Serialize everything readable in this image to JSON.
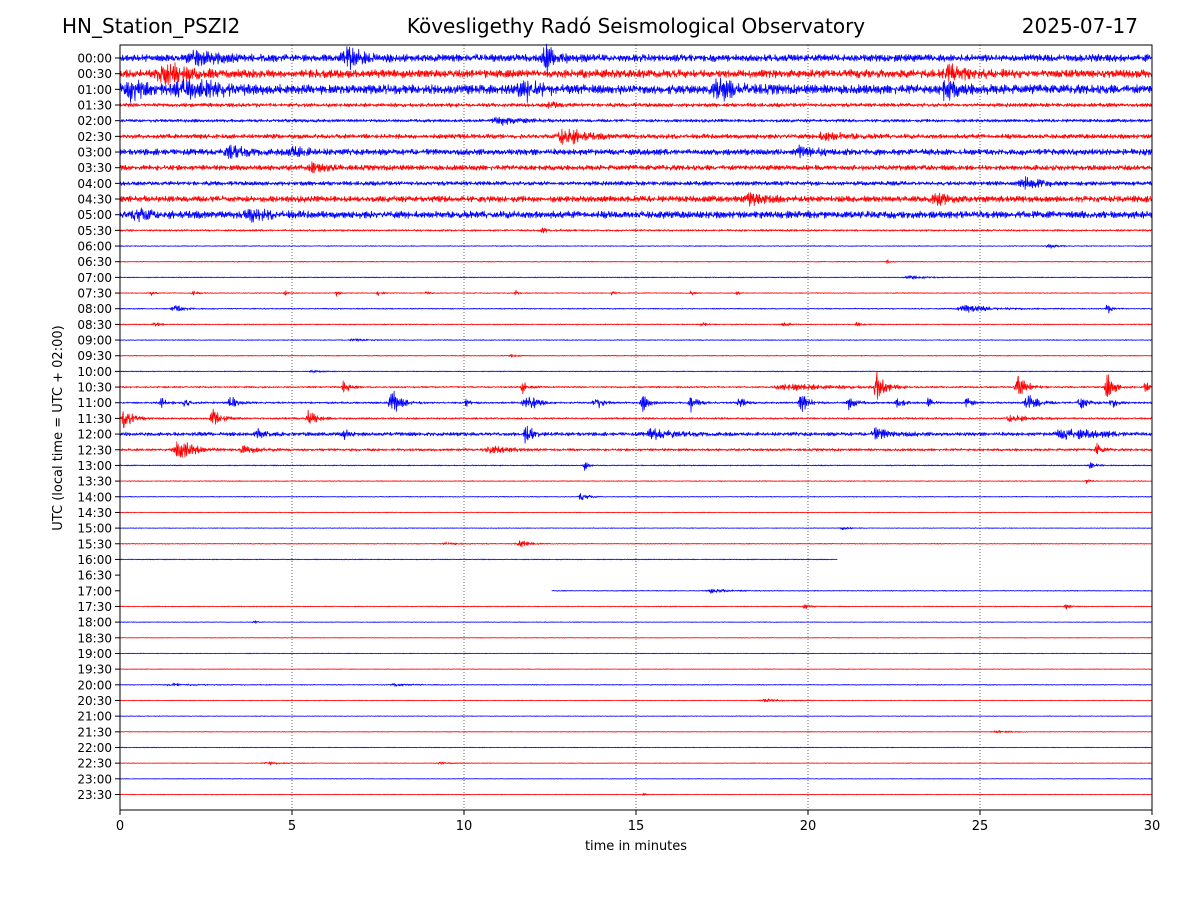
{
  "header": {
    "station": "HN_Station_PSZI2",
    "title": "Kövesligethy Radó Seismological Observatory",
    "date": "2025-07-17"
  },
  "chart_data": {
    "type": "line",
    "title": "Kövesligethy Radó Seismological Observatory",
    "xlabel": "time in minutes",
    "ylabel": "UTC (local time = UTC + 02:00)",
    "xlim": [
      0,
      30
    ],
    "x_ticks": [
      "0",
      "5",
      "10",
      "15",
      "20",
      "25",
      "30"
    ],
    "grid": "vertical dotted at 5-minute ticks",
    "colors": {
      "even_rows": "#0000ff",
      "odd_rows": "#ff0000"
    },
    "rows": [
      {
        "label": "00:00",
        "color": "#0000ff",
        "start": 0,
        "end": 30,
        "noise": 3.5,
        "events": [
          {
            "t": 6.6,
            "amp": 10,
            "w": 0.5
          },
          {
            "t": 12.4,
            "amp": 12,
            "w": 0.4
          },
          {
            "t": 2.2,
            "amp": 6,
            "w": 0.8
          }
        ]
      },
      {
        "label": "00:30",
        "color": "#ff0000",
        "start": 0,
        "end": 30,
        "noise": 4,
        "events": [
          {
            "t": 1.3,
            "amp": 13,
            "w": 0.6
          },
          {
            "t": 24.1,
            "amp": 8,
            "w": 0.5
          }
        ]
      },
      {
        "label": "01:00",
        "color": "#0000ff",
        "start": 0,
        "end": 30,
        "noise": 4.5,
        "events": [
          {
            "t": 0.2,
            "amp": 10,
            "w": 0.6
          },
          {
            "t": 2.0,
            "amp": 9,
            "w": 1.0
          },
          {
            "t": 11.7,
            "amp": 11,
            "w": 0.5
          },
          {
            "t": 17.4,
            "amp": 10,
            "w": 0.5
          },
          {
            "t": 24.0,
            "amp": 9,
            "w": 0.4
          }
        ]
      },
      {
        "label": "01:30",
        "color": "#ff0000",
        "start": 0,
        "end": 30,
        "noise": 1.8,
        "events": [
          {
            "t": 12.5,
            "amp": 3,
            "w": 0.3
          }
        ]
      },
      {
        "label": "02:00",
        "color": "#0000ff",
        "start": 0,
        "end": 30,
        "noise": 1.5,
        "events": [
          {
            "t": 11.0,
            "amp": 4,
            "w": 0.6
          }
        ]
      },
      {
        "label": "02:30",
        "color": "#ff0000",
        "start": 0,
        "end": 30,
        "noise": 2.2,
        "events": [
          {
            "t": 12.9,
            "amp": 12,
            "w": 0.5
          },
          {
            "t": 20.5,
            "amp": 4,
            "w": 0.6
          }
        ]
      },
      {
        "label": "03:00",
        "color": "#0000ff",
        "start": 0,
        "end": 30,
        "noise": 3,
        "events": [
          {
            "t": 3.2,
            "amp": 6,
            "w": 0.4
          },
          {
            "t": 5.0,
            "amp": 5,
            "w": 0.4
          },
          {
            "t": 19.8,
            "amp": 5,
            "w": 0.4
          }
        ]
      },
      {
        "label": "03:30",
        "color": "#ff0000",
        "start": 0,
        "end": 30,
        "noise": 2.5,
        "events": [
          {
            "t": 5.6,
            "amp": 4,
            "w": 0.4
          }
        ]
      },
      {
        "label": "04:00",
        "color": "#0000ff",
        "start": 0,
        "end": 30,
        "noise": 2,
        "events": [
          {
            "t": 26.3,
            "amp": 6,
            "w": 0.5
          }
        ]
      },
      {
        "label": "04:30",
        "color": "#ff0000",
        "start": 0,
        "end": 30,
        "noise": 3,
        "events": [
          {
            "t": 18.3,
            "amp": 5,
            "w": 0.5
          },
          {
            "t": 23.7,
            "amp": 5,
            "w": 0.4
          }
        ]
      },
      {
        "label": "05:00",
        "color": "#0000ff",
        "start": 0,
        "end": 30,
        "noise": 3.5,
        "events": [
          {
            "t": 0.5,
            "amp": 5,
            "w": 0.6
          },
          {
            "t": 3.8,
            "amp": 5,
            "w": 0.5
          }
        ]
      },
      {
        "label": "05:30",
        "color": "#ff0000",
        "start": 0,
        "end": 30,
        "noise": 0.9,
        "events": [
          {
            "t": 12.3,
            "amp": 2,
            "w": 0.3
          }
        ]
      },
      {
        "label": "06:00",
        "color": "#0000ff",
        "start": 0,
        "end": 30,
        "noise": 0.4,
        "events": [
          {
            "t": 27.0,
            "amp": 3,
            "w": 0.2
          }
        ]
      },
      {
        "label": "06:30",
        "color": "#ff0000",
        "start": 0,
        "end": 30,
        "noise": 0.4,
        "events": [
          {
            "t": 22.3,
            "amp": 2,
            "w": 0.1
          }
        ]
      },
      {
        "label": "07:00",
        "color": "#0000ff",
        "start": 0,
        "end": 30,
        "noise": 0.4,
        "events": [
          {
            "t": 23.0,
            "amp": 1.5,
            "w": 0.6
          }
        ]
      },
      {
        "label": "07:30",
        "color": "#ff0000",
        "start": 0,
        "end": 30,
        "noise": 0.4,
        "events": [
          {
            "t": 0.9,
            "amp": 3,
            "w": 0.1
          },
          {
            "t": 2.1,
            "amp": 2.5,
            "w": 0.15
          },
          {
            "t": 4.8,
            "amp": 3,
            "w": 0.1
          },
          {
            "t": 6.3,
            "amp": 3,
            "w": 0.1
          },
          {
            "t": 7.5,
            "amp": 3,
            "w": 0.1
          },
          {
            "t": 8.9,
            "amp": 3,
            "w": 0.1
          },
          {
            "t": 11.5,
            "amp": 2.5,
            "w": 0.1
          },
          {
            "t": 14.3,
            "amp": 2.5,
            "w": 0.1
          },
          {
            "t": 16.6,
            "amp": 3,
            "w": 0.1
          },
          {
            "t": 17.9,
            "amp": 2.5,
            "w": 0.1
          }
        ]
      },
      {
        "label": "08:00",
        "color": "#0000ff",
        "start": 0,
        "end": 30,
        "noise": 0.5,
        "events": [
          {
            "t": 1.6,
            "amp": 4,
            "w": 0.3
          },
          {
            "t": 24.6,
            "amp": 4,
            "w": 0.8
          },
          {
            "t": 28.7,
            "amp": 5,
            "w": 0.15
          }
        ]
      },
      {
        "label": "08:30",
        "color": "#ff0000",
        "start": 0,
        "end": 30,
        "noise": 0.5,
        "events": [
          {
            "t": 1.0,
            "amp": 3,
            "w": 0.15
          },
          {
            "t": 16.9,
            "amp": 2.5,
            "w": 0.15
          },
          {
            "t": 19.3,
            "amp": 2.5,
            "w": 0.15
          },
          {
            "t": 21.4,
            "amp": 2.5,
            "w": 0.15
          }
        ]
      },
      {
        "label": "09:00",
        "color": "#0000ff",
        "start": 0,
        "end": 30,
        "noise": 0.4,
        "events": [
          {
            "t": 6.8,
            "amp": 1.5,
            "w": 0.4
          }
        ]
      },
      {
        "label": "09:30",
        "color": "#ff0000",
        "start": 0,
        "end": 30,
        "noise": 0.4,
        "events": [
          {
            "t": 11.4,
            "amp": 1.5,
            "w": 0.2
          }
        ]
      },
      {
        "label": "10:00",
        "color": "#0000ff",
        "start": 0,
        "end": 30,
        "noise": 0.4,
        "events": [
          {
            "t": 5.6,
            "amp": 1.5,
            "w": 0.3
          }
        ]
      },
      {
        "label": "10:30",
        "color": "#ff0000",
        "start": 0,
        "end": 30,
        "noise": 0.8,
        "events": [
          {
            "t": 6.5,
            "amp": 9,
            "w": 0.15
          },
          {
            "t": 11.7,
            "amp": 6,
            "w": 0.15
          },
          {
            "t": 19.5,
            "amp": 3,
            "w": 1.5
          },
          {
            "t": 22.0,
            "amp": 15,
            "w": 0.25
          },
          {
            "t": 26.1,
            "amp": 14,
            "w": 0.25
          },
          {
            "t": 28.7,
            "amp": 15,
            "w": 0.2
          },
          {
            "t": 29.8,
            "amp": 7,
            "w": 0.15
          }
        ]
      },
      {
        "label": "11:00",
        "color": "#0000ff",
        "start": 0,
        "end": 30,
        "noise": 0.9,
        "events": [
          {
            "t": 1.2,
            "amp": 6,
            "w": 0.15
          },
          {
            "t": 1.9,
            "amp": 6,
            "w": 0.15
          },
          {
            "t": 3.2,
            "amp": 7,
            "w": 0.2
          },
          {
            "t": 7.9,
            "amp": 15,
            "w": 0.25
          },
          {
            "t": 10.0,
            "amp": 5,
            "w": 0.15
          },
          {
            "t": 11.8,
            "amp": 14,
            "w": 0.25
          },
          {
            "t": 13.8,
            "amp": 8,
            "w": 0.2
          },
          {
            "t": 15.2,
            "amp": 8,
            "w": 0.2
          },
          {
            "t": 16.6,
            "amp": 9,
            "w": 0.2
          },
          {
            "t": 18.0,
            "amp": 6,
            "w": 0.15
          },
          {
            "t": 19.8,
            "amp": 12,
            "w": 0.2
          },
          {
            "t": 21.2,
            "amp": 8,
            "w": 0.2
          },
          {
            "t": 22.6,
            "amp": 6,
            "w": 0.2
          },
          {
            "t": 23.5,
            "amp": 5,
            "w": 0.15
          },
          {
            "t": 24.6,
            "amp": 6,
            "w": 0.15
          },
          {
            "t": 26.4,
            "amp": 10,
            "w": 0.3
          },
          {
            "t": 27.9,
            "amp": 10,
            "w": 0.2
          },
          {
            "t": 28.8,
            "amp": 7,
            "w": 0.15
          }
        ]
      },
      {
        "label": "11:30",
        "color": "#ff0000",
        "start": 0,
        "end": 30,
        "noise": 0.9,
        "events": [
          {
            "t": 0.1,
            "amp": 12,
            "w": 0.25
          },
          {
            "t": 2.7,
            "amp": 10,
            "w": 0.25
          },
          {
            "t": 5.5,
            "amp": 10,
            "w": 0.2
          },
          {
            "t": 25.9,
            "amp": 5,
            "w": 0.4
          }
        ]
      },
      {
        "label": "12:00",
        "color": "#0000ff",
        "start": 0,
        "end": 30,
        "noise": 1.8,
        "events": [
          {
            "t": 4.0,
            "amp": 4,
            "w": 0.2
          },
          {
            "t": 6.5,
            "amp": 5,
            "w": 0.15
          },
          {
            "t": 11.8,
            "amp": 10,
            "w": 0.2
          },
          {
            "t": 15.5,
            "amp": 5,
            "w": 0.6
          },
          {
            "t": 22.0,
            "amp": 5,
            "w": 0.5
          },
          {
            "t": 27.5,
            "amp": 5,
            "w": 1.0
          }
        ]
      },
      {
        "label": "12:30",
        "color": "#ff0000",
        "start": 0,
        "end": 30,
        "noise": 1.2,
        "events": [
          {
            "t": 1.7,
            "amp": 12,
            "w": 0.4
          },
          {
            "t": 3.6,
            "amp": 4,
            "w": 0.4
          },
          {
            "t": 10.8,
            "amp": 4,
            "w": 0.5
          },
          {
            "t": 28.4,
            "amp": 6,
            "w": 0.15
          }
        ]
      },
      {
        "label": "13:00",
        "color": "#0000ff",
        "start": 0,
        "end": 30,
        "noise": 0.5,
        "events": [
          {
            "t": 13.5,
            "amp": 6,
            "w": 0.1
          },
          {
            "t": 28.2,
            "amp": 3,
            "w": 0.2
          }
        ]
      },
      {
        "label": "13:30",
        "color": "#ff0000",
        "start": 0,
        "end": 30,
        "noise": 0.4,
        "events": [
          {
            "t": 28.1,
            "amp": 2.5,
            "w": 0.1
          }
        ]
      },
      {
        "label": "14:00",
        "color": "#0000ff",
        "start": 0,
        "end": 30,
        "noise": 0.4,
        "events": [
          {
            "t": 13.4,
            "amp": 5,
            "w": 0.2
          }
        ]
      },
      {
        "label": "14:30",
        "color": "#ff0000",
        "start": 0,
        "end": 30,
        "noise": 0.3,
        "events": []
      },
      {
        "label": "15:00",
        "color": "#0000ff",
        "start": 0,
        "end": 30,
        "noise": 0.3,
        "events": [
          {
            "t": 21.0,
            "amp": 2,
            "w": 0.2
          }
        ]
      },
      {
        "label": "15:30",
        "color": "#ff0000",
        "start": 0,
        "end": 30,
        "noise": 0.4,
        "events": [
          {
            "t": 11.6,
            "amp": 4,
            "w": 0.3
          },
          {
            "t": 9.5,
            "amp": 1.5,
            "w": 0.4
          }
        ]
      },
      {
        "label": "16:00",
        "color": "#0000ff",
        "start": 0,
        "end": 20.85,
        "noise": 0.4,
        "events": []
      },
      {
        "label": "16:30",
        "color": "#ff0000",
        "start": 0,
        "end": 0,
        "noise": 0,
        "events": []
      },
      {
        "label": "17:00",
        "color": "#0000ff",
        "start": 12.55,
        "end": 30,
        "noise": 0.4,
        "events": [
          {
            "t": 17.2,
            "amp": 2,
            "w": 0.5
          }
        ]
      },
      {
        "label": "17:30",
        "color": "#ff0000",
        "start": 0,
        "end": 30,
        "noise": 0.4,
        "events": [
          {
            "t": 19.9,
            "amp": 2.5,
            "w": 0.15
          },
          {
            "t": 27.5,
            "amp": 2.5,
            "w": 0.15
          }
        ]
      },
      {
        "label": "18:00",
        "color": "#0000ff",
        "start": 0,
        "end": 30,
        "noise": 0.3,
        "events": [
          {
            "t": 3.9,
            "amp": 1.5,
            "w": 0.15
          }
        ]
      },
      {
        "label": "18:30",
        "color": "#ff0000",
        "start": 0,
        "end": 30,
        "noise": 0.3,
        "events": []
      },
      {
        "label": "19:00",
        "color": "#0000ff",
        "start": 0,
        "end": 30,
        "noise": 0.3,
        "events": []
      },
      {
        "label": "19:30",
        "color": "#ff0000",
        "start": 0,
        "end": 30,
        "noise": 0.3,
        "events": []
      },
      {
        "label": "20:00",
        "color": "#0000ff",
        "start": 0,
        "end": 30,
        "noise": 0.4,
        "events": [
          {
            "t": 1.5,
            "amp": 1.5,
            "w": 0.6
          },
          {
            "t": 8.0,
            "amp": 1.2,
            "w": 0.4
          }
        ]
      },
      {
        "label": "20:30",
        "color": "#ff0000",
        "start": 0,
        "end": 30,
        "noise": 0.3,
        "events": [
          {
            "t": 18.8,
            "amp": 1.5,
            "w": 0.6
          }
        ]
      },
      {
        "label": "21:00",
        "color": "#0000ff",
        "start": 0,
        "end": 30,
        "noise": 0.3,
        "events": []
      },
      {
        "label": "21:30",
        "color": "#ff0000",
        "start": 0,
        "end": 30,
        "noise": 0.3,
        "events": [
          {
            "t": 25.5,
            "amp": 1.2,
            "w": 0.5
          }
        ]
      },
      {
        "label": "22:00",
        "color": "#0000ff",
        "start": 0,
        "end": 30,
        "noise": 0.3,
        "events": []
      },
      {
        "label": "22:30",
        "color": "#ff0000",
        "start": 0,
        "end": 30,
        "noise": 0.3,
        "events": [
          {
            "t": 4.3,
            "amp": 1.5,
            "w": 0.4
          },
          {
            "t": 9.3,
            "amp": 1.0,
            "w": 0.4
          }
        ]
      },
      {
        "label": "23:00",
        "color": "#0000ff",
        "start": 0,
        "end": 30,
        "noise": 0.3,
        "events": []
      },
      {
        "label": "23:30",
        "color": "#ff0000",
        "start": 0,
        "end": 30,
        "noise": 0.3,
        "events": [
          {
            "t": 15.2,
            "amp": 1.5,
            "w": 0.1
          }
        ]
      }
    ]
  }
}
